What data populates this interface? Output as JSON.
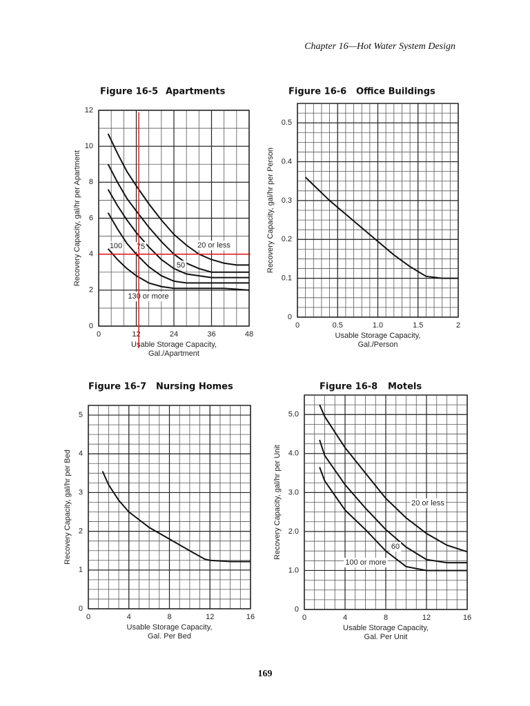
{
  "header": "Chapter 16—Hot Water System Design",
  "page_number": "169",
  "chart_data": [
    {
      "type": "line",
      "figure": "Figure 16-5",
      "title": "Apartments",
      "ylabel": "Recovery Capacity, gal/hr per Apartment",
      "xlabel": [
        "Usable Storage Capacity,",
        "Gal./Apartment"
      ],
      "xlim": [
        0,
        48
      ],
      "xticks": [
        0,
        12,
        24,
        36,
        48
      ],
      "ylim": [
        0,
        12
      ],
      "yticks": [
        0,
        2,
        4,
        6,
        8,
        10,
        12
      ],
      "grid": true,
      "x": [
        3,
        6,
        9,
        12,
        16,
        20,
        24,
        28,
        32,
        36,
        40,
        44,
        48
      ],
      "series": [
        {
          "name": "20 or less",
          "color": "#111111",
          "values": [
            10.7,
            9.6,
            8.6,
            7.8,
            6.8,
            5.9,
            5.1,
            4.5,
            4.0,
            3.7,
            3.5,
            3.4,
            3.4
          ]
        },
        {
          "name": "50",
          "color": "#111111",
          "values": [
            9.0,
            8.0,
            7.1,
            6.4,
            5.5,
            4.7,
            4.0,
            3.5,
            3.2,
            3.0,
            3.0,
            3.0,
            3.0
          ]
        },
        {
          "name": "75",
          "color": "#111111",
          "values": [
            7.6,
            6.7,
            5.9,
            5.2,
            4.4,
            3.7,
            3.2,
            2.9,
            2.8,
            2.7,
            2.7,
            2.7,
            2.7
          ]
        },
        {
          "name": "100",
          "color": "#111111",
          "values": [
            6.3,
            5.4,
            4.6,
            4.0,
            3.3,
            2.8,
            2.5,
            2.4,
            2.4,
            2.4,
            2.4,
            2.4,
            2.4
          ]
        },
        {
          "name": "130 or more",
          "color": "#111111",
          "values": [
            4.3,
            3.7,
            3.2,
            2.8,
            2.4,
            2.2,
            2.1,
            2.1,
            2.1,
            2.1,
            2.1,
            2.05,
            2.0
          ]
        }
      ],
      "ref_lines": {
        "color": "#e8141b",
        "x": [
          12.8
        ],
        "y": [
          4
        ]
      }
    },
    {
      "type": "line",
      "figure": "Figure 16-6",
      "title": "Office Buildings",
      "ylabel": "Recovery Capacity, gal/hr per Person",
      "xlabel": [
        "Usable Storage Capacity,",
        "Gal./Person"
      ],
      "xlim": [
        0,
        2
      ],
      "xticks": [
        0,
        0.5,
        {
          "value": 1,
          "label": "1.0"
        },
        1.5,
        2
      ],
      "ylim": [
        0,
        0.55
      ],
      "yticks": [
        0,
        0.1,
        0.2,
        0.3,
        0.4,
        0.5
      ],
      "grid": true,
      "x": [
        0.1,
        0.2,
        0.4,
        0.6,
        0.8,
        1.0,
        1.2,
        1.4,
        1.6,
        1.8,
        2.0
      ],
      "series": [
        {
          "color": "#111111",
          "values": [
            0.36,
            0.34,
            0.3,
            0.265,
            0.23,
            0.195,
            0.16,
            0.13,
            0.105,
            0.1,
            0.1
          ]
        }
      ]
    },
    {
      "type": "line",
      "figure": "Figure 16-7",
      "title": "Nursing Homes",
      "ylabel": "Recovery Capacity, gal/hr per Bed",
      "xlabel": [
        "Usable Storage Capacity,",
        "Gal. Per Bed"
      ],
      "xlim": [
        0,
        16
      ],
      "xticks": [
        0,
        4,
        8,
        12,
        16
      ],
      "ylim": [
        0,
        5.25
      ],
      "yticks": [
        0,
        1,
        2,
        3,
        4,
        5
      ],
      "grid": true,
      "x": [
        1.4,
        2,
        3,
        4,
        5,
        6,
        8,
        10,
        11.5,
        12,
        14,
        16
      ],
      "series": [
        {
          "color": "#111111",
          "values": [
            3.55,
            3.2,
            2.8,
            2.5,
            2.3,
            2.1,
            1.8,
            1.5,
            1.28,
            1.25,
            1.22,
            1.22
          ]
        }
      ]
    },
    {
      "type": "line",
      "figure": "Figure 16-8",
      "title": "Motels",
      "ylabel": "Recovery Capacity, gal/hr per Unit",
      "xlabel": [
        "Usable Storage Capacity,",
        "Gal. Per Unit"
      ],
      "xlim": [
        0,
        16
      ],
      "xticks": [
        0,
        4,
        8,
        12,
        16
      ],
      "ylim": [
        0,
        5.5
      ],
      "yticks": [
        0,
        {
          "value": 1,
          "label": "1.0"
        },
        {
          "value": 2,
          "label": "2.0"
        },
        {
          "value": 3,
          "label": "3.0"
        },
        {
          "value": 4,
          "label": "4.0"
        },
        {
          "value": 5,
          "label": "5.0"
        }
      ],
      "grid": true,
      "x": [
        1.5,
        2,
        4,
        6,
        8,
        10,
        12,
        14,
        16
      ],
      "series": [
        {
          "name": "20 or less",
          "color": "#111111",
          "values": [
            5.25,
            4.95,
            4.15,
            3.5,
            2.85,
            2.35,
            1.95,
            1.65,
            1.48
          ]
        },
        {
          "name": "60",
          "color": "#111111",
          "values": [
            4.35,
            3.95,
            3.2,
            2.6,
            2.05,
            1.6,
            1.28,
            1.2,
            1.2
          ]
        },
        {
          "name": "100 or more",
          "color": "#111111",
          "values": [
            3.65,
            3.3,
            2.55,
            2.05,
            1.5,
            1.1,
            1.0,
            1.0,
            1.0
          ]
        }
      ]
    }
  ]
}
